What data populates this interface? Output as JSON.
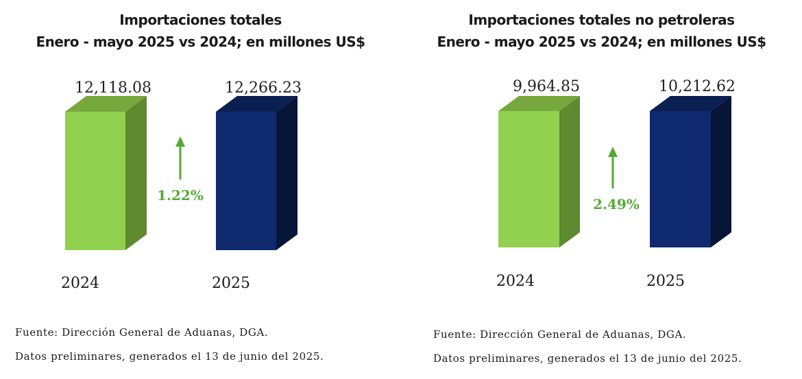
{
  "chart_data": [
    {
      "type": "bar",
      "title": "Importaciones totales",
      "subtitle": "Enero - mayo 2025 vs 2024; en millones US$",
      "categories": [
        "2024",
        "2025"
      ],
      "values": [
        12118.08,
        12266.23
      ],
      "value_labels": [
        "12,118.08",
        "12,266.23"
      ],
      "change_label": "1.22%",
      "colors": [
        "#92d050",
        "#0f2a6e"
      ],
      "source": "Fuente: Dirección General de Aduanas, DGA.",
      "note": "Datos preliminares, generados el 13 de junio del 2025."
    },
    {
      "type": "bar",
      "title": "Importaciones totales no petroleras",
      "subtitle": "Enero - mayo 2025 vs 2024; en millones US$",
      "categories": [
        "2024",
        "2025"
      ],
      "values": [
        9964.85,
        10212.62
      ],
      "value_labels": [
        "9,964.85",
        "10,212.62"
      ],
      "change_label": "2.49%",
      "colors": [
        "#92d050",
        "#0f2a6e"
      ],
      "source": "Fuente: Dirección General de Aduanas, DGA.",
      "note": "Datos preliminares, generados el 13 de junio del 2025."
    }
  ]
}
